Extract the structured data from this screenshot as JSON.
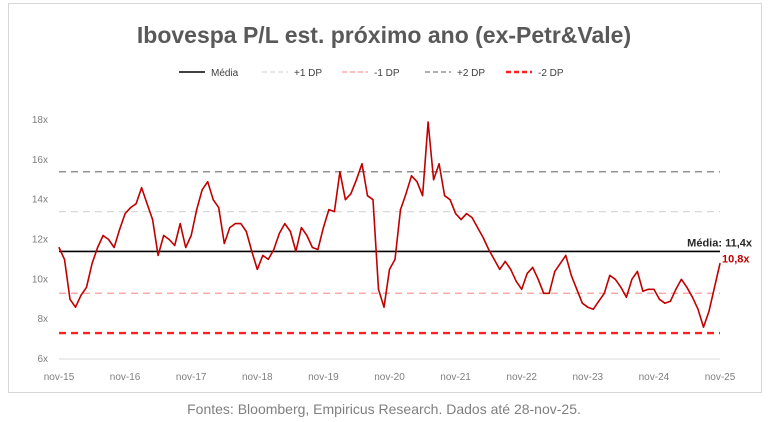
{
  "chart_data": {
    "type": "line",
    "title": "Ibovespa P/L est. próximo ano (ex-Petr&Vale)",
    "footer": "Fontes: Bloomberg, Empiricus Research. Dados até 28-nov-25.",
    "ylim": [
      6,
      18
    ],
    "yticks": [
      "6x",
      "8x",
      "10x",
      "12x",
      "14x",
      "16x",
      "18x"
    ],
    "ytick_values": [
      6,
      8,
      10,
      12,
      14,
      16,
      18
    ],
    "xticks": [
      "nov-15",
      "nov-16",
      "nov-17",
      "nov-18",
      "nov-19",
      "nov-20",
      "nov-21",
      "nov-22",
      "nov-23",
      "nov-24",
      "nov-25"
    ],
    "grid": false,
    "legend_position": "top",
    "legend": [
      {
        "label": "Média",
        "color": "#000000",
        "style": "solid"
      },
      {
        "label": "+1 DP",
        "color": "#d9d9d9",
        "style": "dashed"
      },
      {
        "label": "-1 DP",
        "color": "#ff9999",
        "style": "dashed"
      },
      {
        "label": "+2 DP",
        "color": "#7f7f7f",
        "style": "dashed"
      },
      {
        "label": "-2 DP",
        "color": "#ff2020",
        "style": "dashed-thick"
      }
    ],
    "reference_lines": {
      "media": 11.4,
      "plus1": 13.4,
      "minus1": 9.3,
      "plus2": 15.4,
      "minus2": 7.3
    },
    "annotations": {
      "media_label": "Média: 11,4x",
      "last_label": "10,8x"
    },
    "series_color": "#c00000",
    "series": [
      {
        "values": [
          [
            "2015-11",
            11.6
          ],
          [
            "2015-12",
            11.0
          ],
          [
            "2016-01",
            9.0
          ],
          [
            "2016-02",
            8.6
          ],
          [
            "2016-03",
            9.2
          ],
          [
            "2016-04",
            9.6
          ],
          [
            "2016-05",
            10.8
          ],
          [
            "2016-06",
            11.6
          ],
          [
            "2016-07",
            12.2
          ],
          [
            "2016-08",
            12.0
          ],
          [
            "2016-09",
            11.6
          ],
          [
            "2016-10",
            12.5
          ],
          [
            "2016-11",
            13.3
          ],
          [
            "2016-12",
            13.6
          ],
          [
            "2017-01",
            13.8
          ],
          [
            "2017-02",
            14.6
          ],
          [
            "2017-03",
            13.8
          ],
          [
            "2017-04",
            13.0
          ],
          [
            "2017-05",
            11.2
          ],
          [
            "2017-06",
            12.2
          ],
          [
            "2017-07",
            12.0
          ],
          [
            "2017-08",
            11.7
          ],
          [
            "2017-09",
            12.8
          ],
          [
            "2017-10",
            11.6
          ],
          [
            "2017-11",
            12.2
          ],
          [
            "2017-12",
            13.5
          ],
          [
            "2018-01",
            14.5
          ],
          [
            "2018-02",
            14.9
          ],
          [
            "2018-03",
            14.0
          ],
          [
            "2018-04",
            13.6
          ],
          [
            "2018-05",
            11.8
          ],
          [
            "2018-06",
            12.6
          ],
          [
            "2018-07",
            12.8
          ],
          [
            "2018-08",
            12.8
          ],
          [
            "2018-09",
            12.4
          ],
          [
            "2018-10",
            11.4
          ],
          [
            "2018-11",
            10.5
          ],
          [
            "2018-12",
            11.2
          ],
          [
            "2019-01",
            11.0
          ],
          [
            "2019-02",
            11.5
          ],
          [
            "2019-03",
            12.3
          ],
          [
            "2019-04",
            12.8
          ],
          [
            "2019-05",
            12.4
          ],
          [
            "2019-06",
            11.4
          ],
          [
            "2019-07",
            12.6
          ],
          [
            "2019-08",
            12.2
          ],
          [
            "2019-09",
            11.6
          ],
          [
            "2019-10",
            11.5
          ],
          [
            "2019-11",
            12.6
          ],
          [
            "2019-12",
            13.5
          ],
          [
            "2020-01",
            13.4
          ],
          [
            "2020-02",
            15.4
          ],
          [
            "2020-03",
            14.0
          ],
          [
            "2020-04",
            14.3
          ],
          [
            "2020-05",
            15.0
          ],
          [
            "2020-06",
            15.8
          ],
          [
            "2020-07",
            14.2
          ],
          [
            "2020-08",
            14.0
          ],
          [
            "2020-09",
            9.5
          ],
          [
            "2020-10",
            8.6
          ],
          [
            "2020-11",
            10.5
          ],
          [
            "2020-12",
            11.0
          ],
          [
            "2021-01",
            13.5
          ],
          [
            "2021-02",
            14.3
          ],
          [
            "2021-03",
            15.2
          ],
          [
            "2021-04",
            14.9
          ],
          [
            "2021-05",
            14.2
          ],
          [
            "2021-06",
            17.9
          ],
          [
            "2021-07",
            15.0
          ],
          [
            "2021-08",
            15.8
          ],
          [
            "2021-09",
            14.2
          ],
          [
            "2021-10",
            14.0
          ],
          [
            "2021-11",
            13.3
          ],
          [
            "2021-12",
            13.0
          ],
          [
            "2022-01",
            13.3
          ],
          [
            "2022-02",
            13.1
          ],
          [
            "2022-03",
            12.6
          ],
          [
            "2022-04",
            12.1
          ],
          [
            "2022-05",
            11.5
          ],
          [
            "2022-06",
            11.0
          ],
          [
            "2022-07",
            10.5
          ],
          [
            "2022-08",
            10.9
          ],
          [
            "2022-09",
            10.5
          ],
          [
            "2022-10",
            9.9
          ],
          [
            "2022-11",
            9.5
          ],
          [
            "2022-12",
            10.3
          ],
          [
            "2023-01",
            10.6
          ],
          [
            "2023-02",
            10.0
          ],
          [
            "2023-03",
            9.3
          ],
          [
            "2023-04",
            9.3
          ],
          [
            "2023-05",
            10.4
          ],
          [
            "2023-06",
            10.8
          ],
          [
            "2023-07",
            11.2
          ],
          [
            "2023-08",
            10.2
          ],
          [
            "2023-09",
            9.5
          ],
          [
            "2023-10",
            8.8
          ],
          [
            "2023-11",
            8.6
          ],
          [
            "2023-12",
            8.5
          ],
          [
            "2024-01",
            8.9
          ],
          [
            "2024-02",
            9.3
          ],
          [
            "2024-03",
            10.2
          ],
          [
            "2024-04",
            10.0
          ],
          [
            "2024-05",
            9.6
          ],
          [
            "2024-06",
            9.1
          ],
          [
            "2024-07",
            10.0
          ],
          [
            "2024-08",
            10.4
          ],
          [
            "2024-09",
            9.4
          ],
          [
            "2024-10",
            9.5
          ],
          [
            "2024-11",
            9.5
          ],
          [
            "2024-12",
            9.0
          ],
          [
            "2025-01",
            8.8
          ],
          [
            "2025-02",
            8.9
          ],
          [
            "2025-03",
            9.5
          ],
          [
            "2025-04",
            10.0
          ],
          [
            "2025-05",
            9.6
          ],
          [
            "2025-06",
            9.1
          ],
          [
            "2025-07",
            8.5
          ],
          [
            "2025-08",
            7.6
          ],
          [
            "2025-09",
            8.4
          ],
          [
            "2025-10",
            9.6
          ],
          [
            "2025-11",
            10.8
          ]
        ]
      }
    ]
  }
}
